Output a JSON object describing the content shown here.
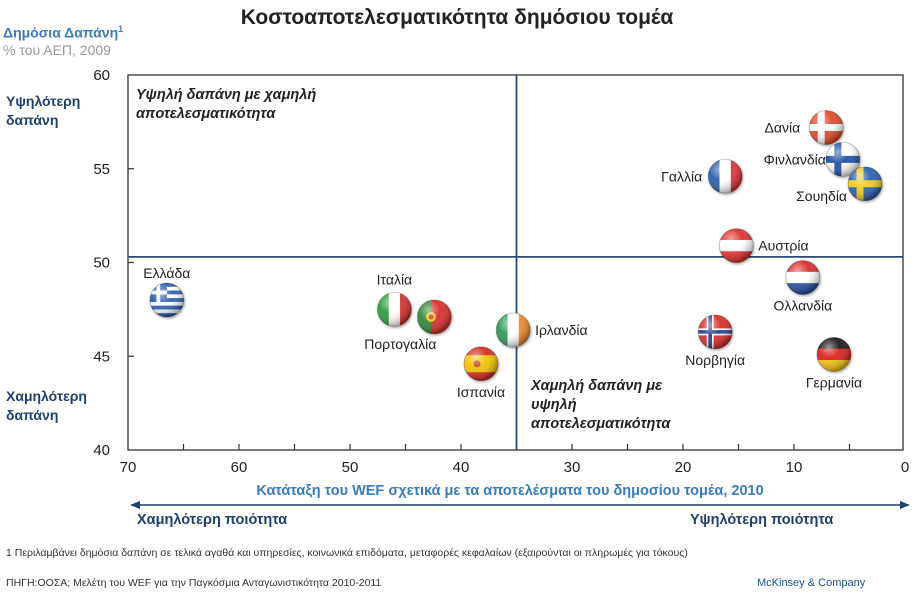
{
  "header": {
    "title": "Κοστοαποτελεσματικότητα δημόσιου τομέα",
    "y_axis_title": "Δημόσια Δαπάνη",
    "y_axis_title_superscript": "1",
    "y_axis_subtitle": "% του ΑΕΠ, 2009"
  },
  "side_labels": {
    "high_spend": [
      "Υψηλότερη",
      "δαπάνη"
    ],
    "low_spend": [
      "Χαμηλότερη",
      "δαπάνη"
    ]
  },
  "quadrants": {
    "top_left": [
      "Υψηλή δαπάνη με χαμηλή",
      "αποτελεσματικότητα"
    ],
    "bottom_right": [
      "Χαμηλή δαπάνη με",
      "υψηλή",
      "αποτελεσματικότητα"
    ]
  },
  "x_axis": {
    "label": "Κατάταξη του WEF σχετικά με τα αποτελέσματα του δημοσίου τομέα, 2010",
    "low_quality": "Χαμηλότερη ποιότητα",
    "high_quality": "Υψηλότερη ποιότητα"
  },
  "footer": {
    "footnote": "1 Περιλαμβάνει δημόσια δαπάνη σε τελικά αγαθά και υπηρεσίες, κοινωνικά επιδόματα, μεταφορές κεφαλαίων (εξαιρούνται οι πληρωμές για τόκους)",
    "source": "ΠΗΓΗ:ΟΟΣΑ; Μελέτη του WEF για την Παγκόσμια Ανταγωνιστικότητα 2010-2011",
    "brand": "McKinsey & Company"
  },
  "colors": {
    "accent_blue": "#3b7bbf",
    "navy": "#1f3f6e",
    "divider": "#2b4a72"
  },
  "chart_data": {
    "type": "scatter",
    "title": "Κοστοαποτελεσματικότητα δημόσιου τομέα",
    "xlabel": "Κατάταξη του WEF σχετικά με τα αποτελέσματα του δημοσίου τομέα, 2010",
    "ylabel": "Δημόσια Δαπάνη, % του ΑΕΠ, 2009",
    "xlim": [
      70,
      0
    ],
    "ylim": [
      40,
      60
    ],
    "x_reversed": true,
    "x_ticks": [
      70,
      60,
      50,
      40,
      30,
      20,
      10,
      0
    ],
    "x_minor_ticks": [
      65,
      55,
      45,
      35,
      25,
      15,
      5
    ],
    "y_ticks": [
      60,
      55,
      50,
      45,
      40
    ],
    "grid": false,
    "divider_x": 35,
    "divider_y": 50.3,
    "points": [
      {
        "name": "Ελλάδα",
        "flag": "greece",
        "x": 66.5,
        "y": 48.0,
        "label_pos": "above"
      },
      {
        "name": "Ιταλία",
        "flag": "italy",
        "x": 46.0,
        "y": 47.5,
        "label_pos": "above"
      },
      {
        "name": "Πορτογαλία",
        "flag": "portugal",
        "x": 42.4,
        "y": 47.1,
        "label_pos": "below-left"
      },
      {
        "name": "Ισπανία",
        "flag": "spain",
        "x": 38.2,
        "y": 44.6,
        "label_pos": "below"
      },
      {
        "name": "Ιρλανδία",
        "flag": "ireland",
        "x": 35.3,
        "y": 46.4,
        "label_pos": "right"
      },
      {
        "name": "Γαλλία",
        "flag": "france",
        "x": 16.2,
        "y": 54.6,
        "label_pos": "left"
      },
      {
        "name": "Δανία",
        "flag": "denmark",
        "x": 7.1,
        "y": 57.2,
        "label_pos": "left"
      },
      {
        "name": "Φινλανδία",
        "flag": "finland",
        "x": 5.6,
        "y": 55.5,
        "label_pos": "left"
      },
      {
        "name": "Σουηδία",
        "flag": "sweden",
        "x": 3.6,
        "y": 54.2,
        "label_pos": "below-left"
      },
      {
        "name": "Αυστρία",
        "flag": "austria",
        "x": 15.2,
        "y": 50.9,
        "label_pos": "right"
      },
      {
        "name": "Ολλανδία",
        "flag": "netherlands",
        "x": 9.2,
        "y": 49.2,
        "label_pos": "below"
      },
      {
        "name": "Νορβηγία",
        "flag": "norway",
        "x": 17.1,
        "y": 46.3,
        "label_pos": "below"
      },
      {
        "name": "Γερμανία",
        "flag": "germany",
        "x": 6.4,
        "y": 45.1,
        "label_pos": "below"
      }
    ]
  }
}
